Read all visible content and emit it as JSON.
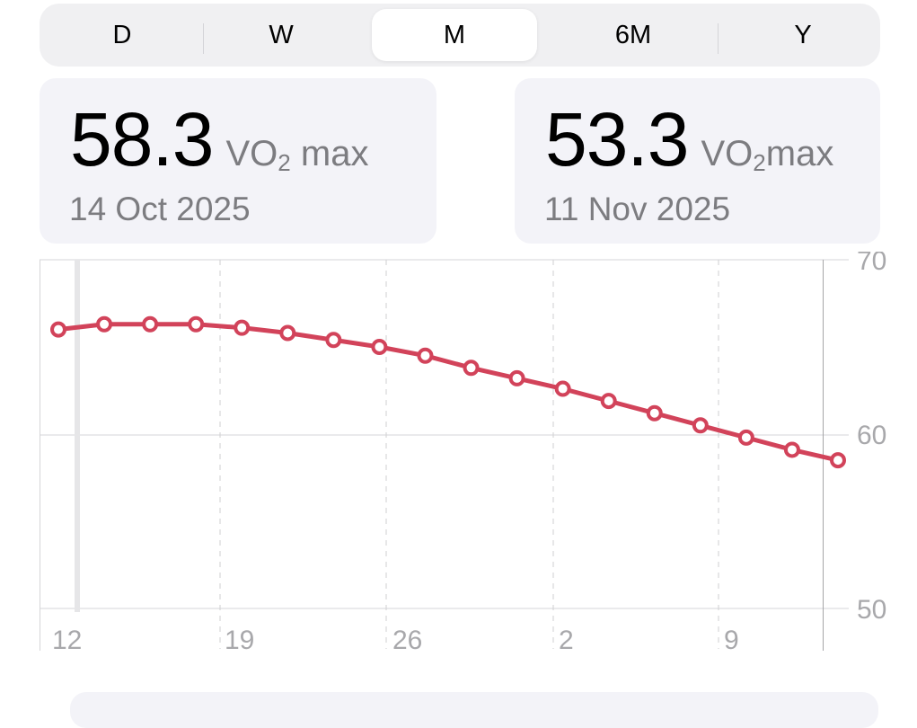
{
  "segmented_control": {
    "items": [
      {
        "label": "D",
        "active": false
      },
      {
        "label": "W",
        "active": false
      },
      {
        "label": "M",
        "active": true
      },
      {
        "label": "6M",
        "active": false
      },
      {
        "label": "Y",
        "active": false
      }
    ]
  },
  "cards": [
    {
      "value": "58.3",
      "unit_prefix": "VO",
      "unit_sub": "2",
      "unit_suffix": " max",
      "date": "14 Oct 2025"
    },
    {
      "value": "53.3",
      "unit_prefix": "VO",
      "unit_sub": "2",
      "unit_suffix": "max",
      "date": "11 Nov 2025"
    }
  ],
  "colors": {
    "line": "#d2435a",
    "segment_bg": "#f0f0f2",
    "card_bg": "#f3f3f8",
    "secondary_text": "#7c7c80",
    "axis_text": "#a8a8ab",
    "grid": "#dcdcdc"
  },
  "chart_data": {
    "type": "line",
    "title": "",
    "xlabel": "",
    "ylabel": "VO2 max",
    "ylim": [
      50,
      70
    ],
    "yticks": [
      50,
      60,
      70
    ],
    "y_axis_position": "right",
    "x_tick_labels": [
      "12",
      "19",
      "26",
      "2",
      "9"
    ],
    "grid": true,
    "legend": null,
    "series": [
      {
        "name": "VO2 max",
        "x": [
          "11 Oct",
          "13 Oct",
          "15 Oct",
          "17 Oct",
          "19 Oct",
          "21 Oct",
          "23 Oct",
          "25 Oct",
          "27 Oct",
          "29 Oct",
          "31 Oct",
          "2 Nov",
          "4 Nov",
          "6 Nov",
          "8 Nov",
          "10 Nov",
          "12 Nov",
          "14 Nov"
        ],
        "values": [
          66.0,
          66.3,
          66.3,
          66.3,
          66.1,
          65.8,
          65.4,
          65.0,
          64.5,
          63.8,
          63.2,
          62.6,
          61.9,
          61.2,
          60.5,
          59.8,
          59.1,
          58.5
        ]
      }
    ]
  }
}
